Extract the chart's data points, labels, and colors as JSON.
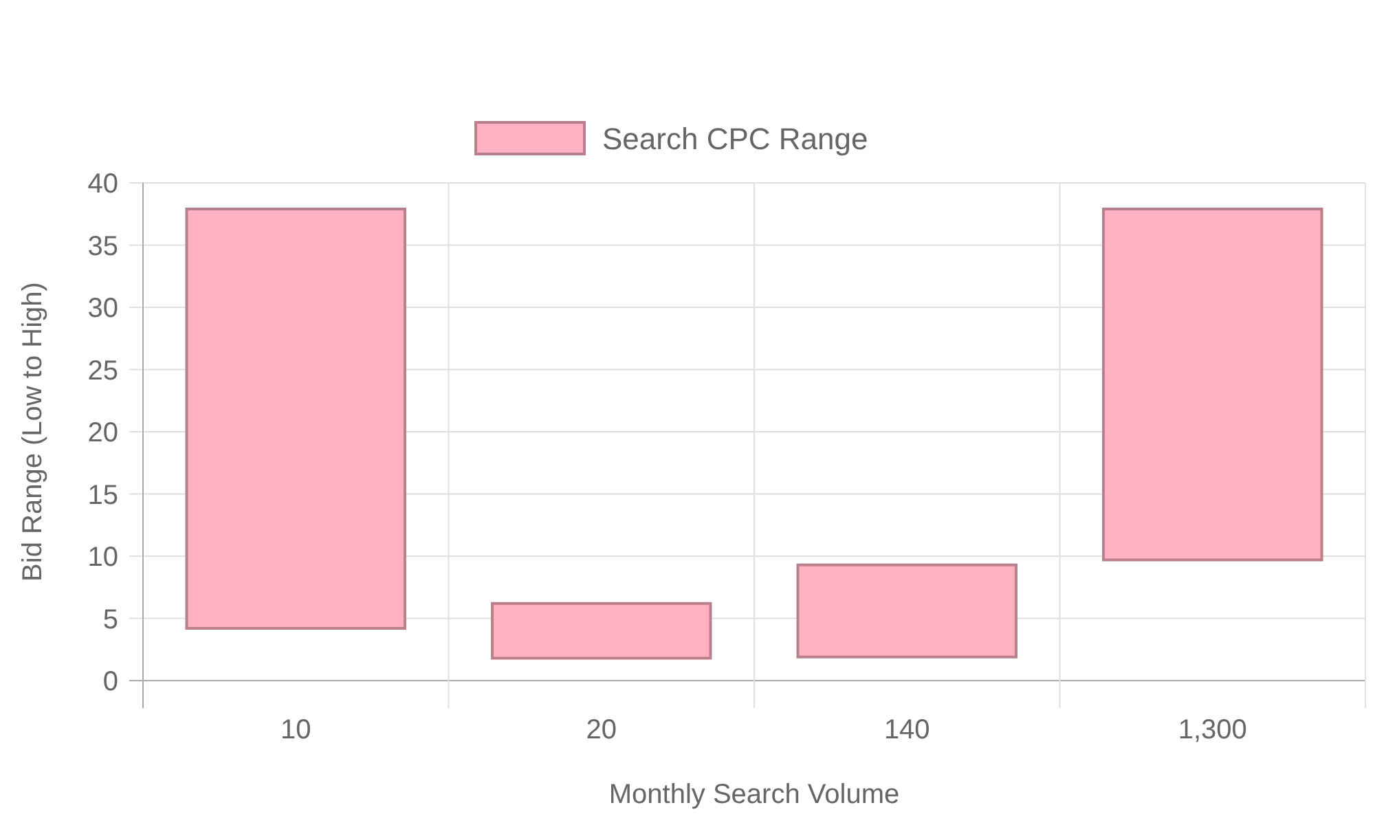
{
  "chart_data": {
    "type": "bar",
    "xlabel": "Monthly Search Volume",
    "ylabel": "Bid Range (Low to High)",
    "categories": [
      "10",
      "20",
      "140",
      "1,300"
    ],
    "series": [
      {
        "name": "Search CPC Range",
        "color": "#ffb1c1",
        "base": [
          4.2,
          1.8,
          1.9,
          9.7
        ],
        "values": [
          33.7,
          4.4,
          7.4,
          28.2
        ]
      }
    ],
    "ylim": [
      0,
      40
    ],
    "yticks": [
      0,
      5,
      10,
      15,
      20,
      25,
      30,
      35,
      40
    ],
    "grid": true,
    "legend": "top"
  }
}
